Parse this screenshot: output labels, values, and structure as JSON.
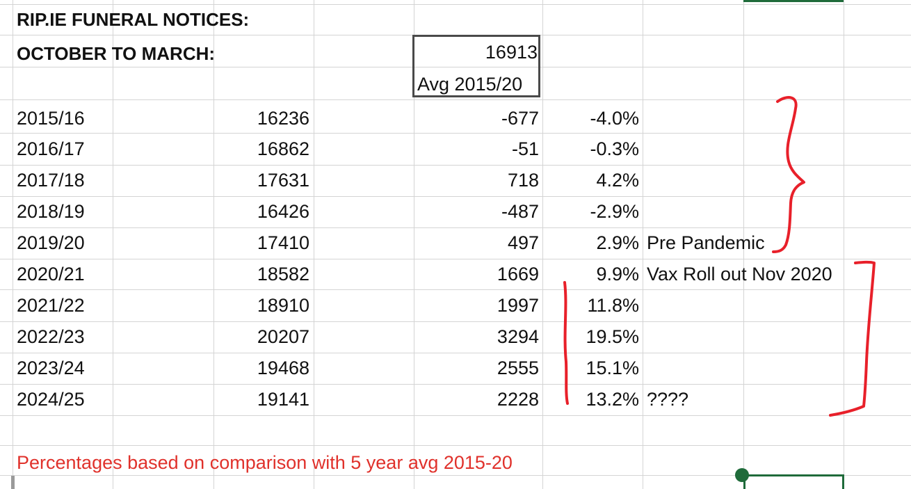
{
  "header": {
    "title_line1": "RIP.IE FUNERAL NOTICES:",
    "title_line2": "OCTOBER TO MARCH:"
  },
  "average_box": {
    "value": "16913",
    "label": "Avg 2015/20"
  },
  "rows": [
    {
      "period": "2015/16",
      "count": "16236",
      "diff": "-677",
      "pct": "-4.0%",
      "note": ""
    },
    {
      "period": "2016/17",
      "count": "16862",
      "diff": "-51",
      "pct": "-0.3%",
      "note": ""
    },
    {
      "period": "2017/18",
      "count": "17631",
      "diff": "718",
      "pct": "4.2%",
      "note": ""
    },
    {
      "period": "2018/19",
      "count": "16426",
      "diff": "-487",
      "pct": "-2.9%",
      "note": ""
    },
    {
      "period": "2019/20",
      "count": "17410",
      "diff": "497",
      "pct": "2.9%",
      "note": "Pre Pandemic"
    },
    {
      "period": "2020/21",
      "count": "18582",
      "diff": "1669",
      "pct": "9.9%",
      "note": "Vax Roll out Nov 2020"
    },
    {
      "period": "2021/22",
      "count": "18910",
      "diff": "1997",
      "pct": "11.8%",
      "note": ""
    },
    {
      "period": "2022/23",
      "count": "20207",
      "diff": "3294",
      "pct": "19.5%",
      "note": ""
    },
    {
      "period": "2023/24",
      "count": "19468",
      "diff": "2555",
      "pct": "15.1%",
      "note": ""
    },
    {
      "period": "2024/25",
      "count": "19141",
      "diff": "2228",
      "pct": "13.2%",
      "note": "????"
    }
  ],
  "footnote": "Percentages based on comparison with 5 year avg 2015-20",
  "colors": {
    "grid": "#d4d4d4",
    "text": "#111111",
    "footnote": "#e0312b",
    "annotation": "#e8202a",
    "selection": "#1f6b3a"
  }
}
